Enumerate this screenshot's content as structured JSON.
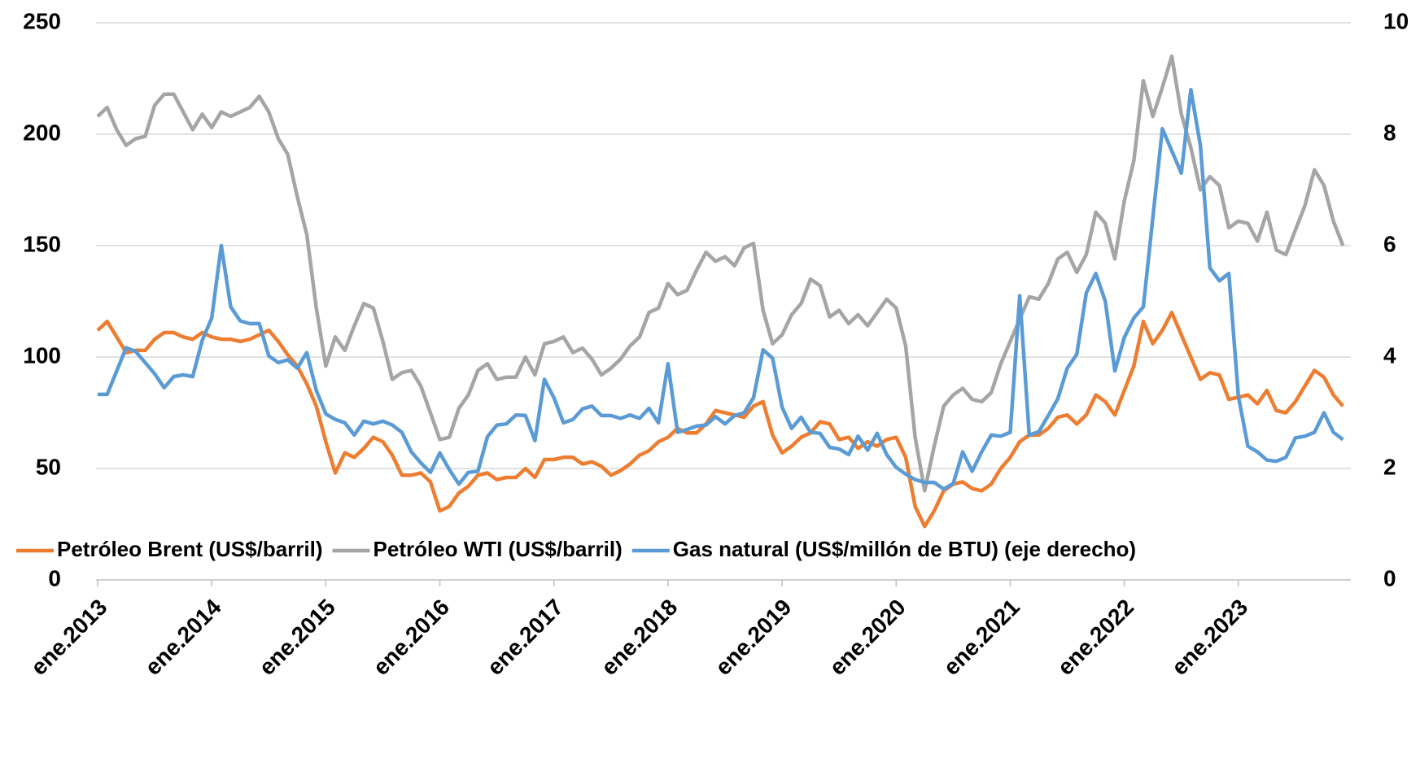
{
  "chart_data": {
    "type": "line",
    "categories": [
      "ene.2013",
      null,
      null,
      null,
      null,
      null,
      null,
      null,
      null,
      null,
      null,
      null,
      "ene.2014",
      null,
      null,
      null,
      null,
      null,
      null,
      null,
      null,
      null,
      null,
      null,
      "ene.2015",
      null,
      null,
      null,
      null,
      null,
      null,
      null,
      null,
      null,
      null,
      null,
      "ene.2016",
      null,
      null,
      null,
      null,
      null,
      null,
      null,
      null,
      null,
      null,
      null,
      "ene.2017",
      null,
      null,
      null,
      null,
      null,
      null,
      null,
      null,
      null,
      null,
      null,
      "ene.2018",
      null,
      null,
      null,
      null,
      null,
      null,
      null,
      null,
      null,
      null,
      null,
      "ene.2019",
      null,
      null,
      null,
      null,
      null,
      null,
      null,
      null,
      null,
      null,
      null,
      "ene.2020",
      null,
      null,
      null,
      null,
      null,
      null,
      null,
      null,
      null,
      null,
      null,
      "ene.2021",
      null,
      null,
      null,
      null,
      null,
      null,
      null,
      null,
      null,
      null,
      null,
      "ene.2022",
      null,
      null,
      null,
      null,
      null,
      null,
      null,
      null,
      null,
      null,
      null,
      "ene.2023",
      null,
      null,
      null,
      null,
      null,
      null,
      null,
      null,
      null,
      null,
      null
    ],
    "series": [
      {
        "name": "Petróleo Brent (US$/barril)",
        "color": "#ED7D31",
        "values": [
          112,
          116,
          109,
          102,
          103,
          103,
          108,
          111,
          111,
          109,
          108,
          111,
          109,
          108,
          108,
          107,
          108,
          110,
          112,
          107,
          101,
          96,
          88,
          78,
          62,
          48,
          57,
          55,
          59,
          64,
          62,
          56,
          47,
          47,
          48,
          44,
          31,
          33,
          39,
          42,
          47,
          48,
          45,
          46,
          46,
          50,
          46,
          54,
          54,
          55,
          55,
          52,
          53,
          51,
          47,
          49,
          52,
          56,
          58,
          62,
          64,
          68,
          66,
          66,
          70,
          76,
          75,
          74,
          73,
          78,
          80,
          65,
          57,
          60,
          64,
          66,
          71,
          70,
          63,
          64,
          59,
          62,
          60,
          63,
          64,
          55,
          33,
          24,
          31,
          40,
          43,
          44,
          41,
          40,
          43,
          50,
          55,
          62,
          65,
          65,
          68,
          73,
          74,
          70,
          74,
          83,
          80,
          74,
          85,
          96,
          116,
          106,
          112,
          120,
          110,
          100,
          90,
          93,
          92,
          81,
          82,
          83,
          79,
          85,
          76,
          75,
          80,
          87,
          94,
          91,
          83,
          78
        ]
      },
      {
        "name": "Petróleo WTI (US$/barril)",
        "color": "#A5A5A5",
        "values": [
          208,
          212,
          202,
          195,
          198,
          199,
          213,
          218,
          218,
          210,
          202,
          209,
          203,
          210,
          208,
          210,
          212,
          217,
          210,
          198,
          191,
          172,
          155,
          122,
          96,
          109,
          103,
          114,
          124,
          122,
          107,
          90,
          93,
          94,
          87,
          75,
          63,
          64,
          77,
          83,
          94,
          97,
          90,
          91,
          91,
          100,
          92,
          106,
          107,
          109,
          102,
          104,
          99,
          92,
          95,
          99,
          105,
          109,
          120,
          122,
          133,
          128,
          130,
          139,
          147,
          143,
          145,
          141,
          149,
          151,
          121,
          106,
          110,
          119,
          124,
          135,
          132,
          118,
          121,
          115,
          119,
          114,
          120,
          126,
          122,
          105,
          64,
          40,
          60,
          78,
          83,
          86,
          81,
          80,
          84,
          97,
          107,
          117,
          127,
          126,
          133,
          144,
          147,
          138,
          146,
          165,
          160,
          144,
          170,
          188,
          224,
          208,
          221,
          235,
          209,
          194,
          175,
          181,
          177,
          158,
          161,
          160,
          152,
          165,
          148,
          146,
          157,
          168,
          184,
          177,
          161,
          150
        ]
      },
      {
        "name": "Gas natural (US$/millón de BTU) (eje derecho)",
        "color": "#5B9BD5",
        "axis": "y2",
        "values": [
          3.33,
          3.33,
          3.75,
          4.17,
          4.1,
          3.9,
          3.7,
          3.45,
          3.65,
          3.68,
          3.65,
          4.3,
          4.7,
          6.0,
          4.9,
          4.65,
          4.6,
          4.6,
          4.02,
          3.9,
          3.95,
          3.8,
          4.08,
          3.4,
          2.98,
          2.88,
          2.82,
          2.6,
          2.85,
          2.8,
          2.85,
          2.78,
          2.65,
          2.3,
          2.1,
          1.93,
          2.28,
          1.98,
          1.72,
          1.93,
          1.95,
          2.57,
          2.78,
          2.8,
          2.96,
          2.95,
          2.5,
          3.6,
          3.27,
          2.82,
          2.88,
          3.07,
          3.12,
          2.95,
          2.95,
          2.9,
          2.96,
          2.9,
          3.08,
          2.82,
          3.88,
          2.65,
          2.7,
          2.76,
          2.78,
          2.93,
          2.8,
          2.95,
          3.0,
          3.27,
          4.13,
          3.98,
          3.1,
          2.72,
          2.92,
          2.65,
          2.63,
          2.38,
          2.35,
          2.25,
          2.58,
          2.33,
          2.63,
          2.25,
          2.02,
          1.9,
          1.8,
          1.75,
          1.75,
          1.63,
          1.73,
          2.3,
          1.95,
          2.3,
          2.6,
          2.58,
          2.65,
          5.1,
          2.6,
          2.66,
          2.95,
          3.25,
          3.8,
          4.05,
          5.15,
          5.5,
          5.0,
          3.75,
          4.35,
          4.7,
          4.9,
          6.5,
          8.1,
          7.7,
          7.3,
          8.8,
          7.8,
          5.6,
          5.37,
          5.5,
          3.3,
          2.4,
          2.3,
          2.15,
          2.13,
          2.2,
          2.55,
          2.58,
          2.65,
          3.0,
          2.65,
          2.52
        ]
      }
    ],
    "ylim": [
      0,
      250
    ],
    "yticks": [
      0,
      50,
      100,
      150,
      200,
      250
    ],
    "y2lim": [
      0,
      10
    ],
    "y2ticks": [
      0,
      2,
      4,
      6,
      8,
      10
    ],
    "grid": true,
    "legend": "bottom"
  }
}
